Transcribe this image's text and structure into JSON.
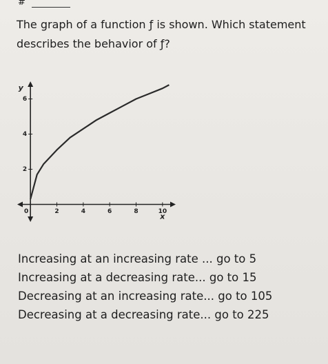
{
  "header": {
    "number": "#"
  },
  "question": {
    "lines": [
      "The graph of a function ƒ is shown. Which statement",
      "describes the behavior of ƒ?"
    ]
  },
  "chart_data": {
    "type": "line",
    "x_label": "x",
    "y_label": "y",
    "x": [
      0,
      0.5,
      1,
      2,
      3,
      4,
      5,
      6,
      7,
      8,
      9,
      10,
      10.5
    ],
    "values": [
      0.3,
      1.7,
      2.3,
      3.1,
      3.8,
      4.3,
      4.8,
      5.2,
      5.6,
      6.0,
      6.3,
      6.6,
      6.8
    ],
    "color": "#2a2a2a",
    "xlim": [
      -1,
      11
    ],
    "ylim": [
      -1,
      7
    ],
    "xticks": [
      0,
      2,
      4,
      6,
      8,
      10
    ],
    "yticks": [
      2,
      4,
      6
    ]
  },
  "choices": [
    "Increasing at an increasing rate ... go to 5",
    "Increasing at a decreasing rate... go to 15",
    "Decreasing at an increasing rate... go to 105",
    "Decreasing at a decreasing rate... go to 225"
  ]
}
